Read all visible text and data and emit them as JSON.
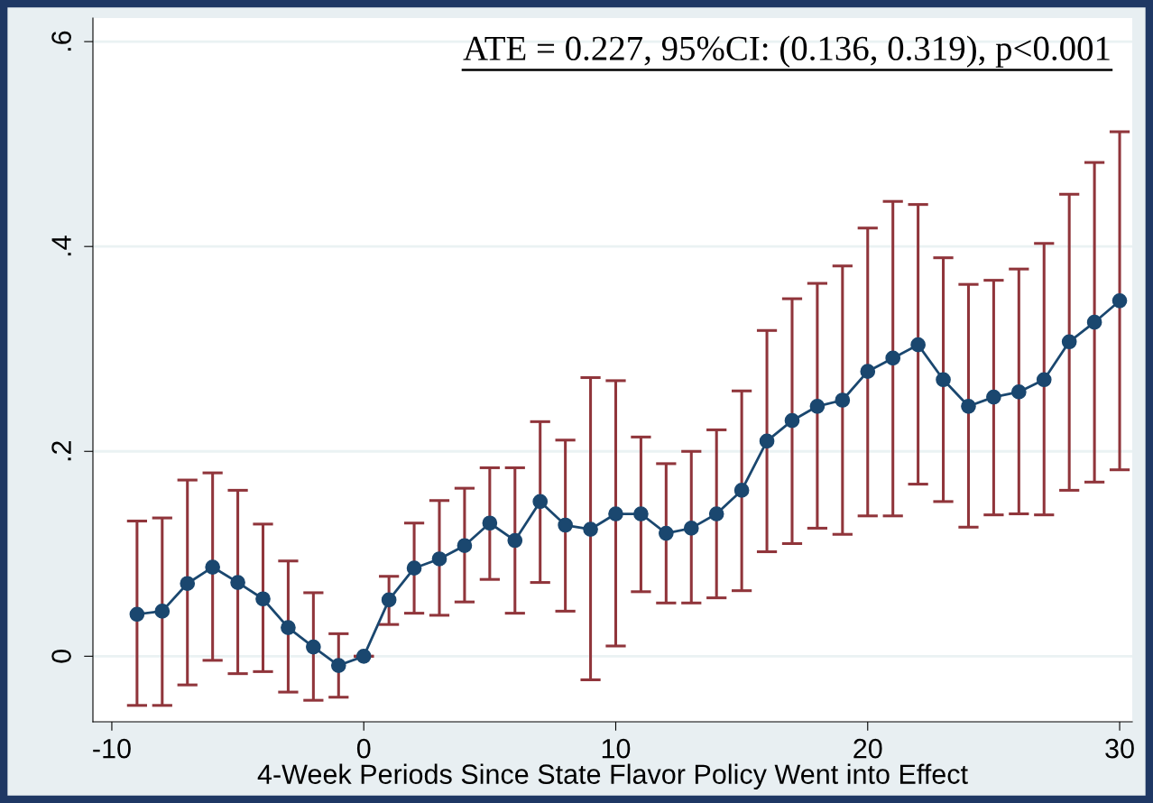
{
  "chart_data": {
    "type": "line",
    "xlabel": "4-Week Periods Since State Flavor Policy Went into Effect",
    "annotations": [
      "ATE = 0.227, 95%CI: (0.136, 0.319), p<0.001"
    ],
    "x": [
      -9,
      -8,
      -7,
      -6,
      -5,
      -4,
      -3,
      -2,
      -1,
      0,
      1,
      2,
      3,
      4,
      5,
      6,
      7,
      8,
      9,
      10,
      11,
      12,
      13,
      14,
      15,
      16,
      17,
      18,
      19,
      20,
      21,
      22,
      23,
      24,
      25,
      26,
      27,
      28,
      29,
      30
    ],
    "series": [
      {
        "color": "#1a476f",
        "values": [
          0.041,
          0.044,
          0.071,
          0.087,
          0.072,
          0.056,
          0.028,
          0.009,
          -0.009,
          0,
          0.055,
          0.086,
          0.095,
          0.108,
          0.13,
          0.113,
          0.151,
          0.128,
          0.124,
          0.139,
          0.139,
          0.12,
          0.125,
          0.139,
          0.162,
          0.21,
          0.23,
          0.244,
          0.25,
          0.278,
          0.291,
          0.304,
          0.27,
          0.244,
          0.253,
          0.258,
          0.27,
          0.307,
          0.326,
          0.347
        ],
        "errors": [
          [
            -0.048,
            0.132
          ],
          [
            -0.048,
            0.135
          ],
          [
            -0.028,
            0.172
          ],
          [
            -0.004,
            0.179
          ],
          [
            -0.017,
            0.162
          ],
          [
            -0.015,
            0.129
          ],
          [
            -0.035,
            0.093
          ],
          [
            -0.043,
            0.062
          ],
          [
            -0.04,
            0.022
          ],
          [
            0,
            0
          ],
          [
            0.031,
            0.078
          ],
          [
            0.042,
            0.13
          ],
          [
            0.04,
            0.152
          ],
          [
            0.053,
            0.164
          ],
          [
            0.075,
            0.184
          ],
          [
            0.042,
            0.184
          ],
          [
            0.072,
            0.229
          ],
          [
            0.044,
            0.211
          ],
          [
            -0.023,
            0.272
          ],
          [
            0.01,
            0.269
          ],
          [
            0.063,
            0.214
          ],
          [
            0.052,
            0.188
          ],
          [
            0.052,
            0.2
          ],
          [
            0.057,
            0.221
          ],
          [
            0.064,
            0.259
          ],
          [
            0.102,
            0.318
          ],
          [
            0.11,
            0.349
          ],
          [
            0.125,
            0.364
          ],
          [
            0.119,
            0.381
          ],
          [
            0.137,
            0.418
          ],
          [
            0.137,
            0.444
          ],
          [
            0.168,
            0.441
          ],
          [
            0.151,
            0.389
          ],
          [
            0.126,
            0.363
          ],
          [
            0.138,
            0.367
          ],
          [
            0.139,
            0.378
          ],
          [
            0.138,
            0.403
          ],
          [
            0.162,
            0.451
          ],
          [
            0.17,
            0.482
          ],
          [
            0.182,
            0.512
          ]
        ]
      }
    ],
    "xlim": [
      -10.75,
      30.5
    ],
    "ylim": [
      -0.064,
      0.623
    ],
    "xticks": [
      -10,
      0,
      10,
      20,
      30
    ],
    "yticks": [
      {
        "value": 0,
        "label": "0"
      },
      {
        "value": 0.2,
        "label": ".2"
      },
      {
        "value": 0.4,
        "label": ".4"
      },
      {
        "value": 0.6,
        "label": ".6"
      }
    ],
    "grid": "y",
    "marker": "circle",
    "line_style": "solid"
  }
}
